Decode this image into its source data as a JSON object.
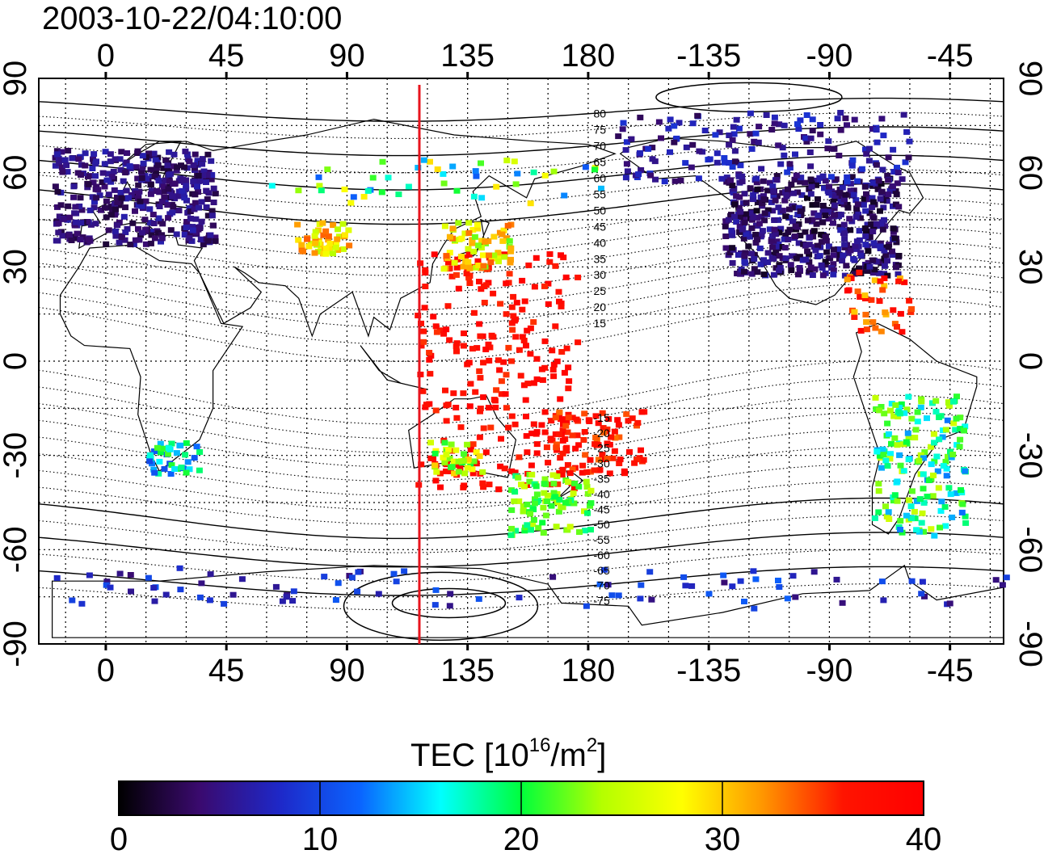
{
  "title": "2003-10-22/04:10:00",
  "map": {
    "lon_ticks": [
      "0",
      "45",
      "90",
      "135",
      "180",
      "-135",
      "-90",
      "-45"
    ],
    "lat_ticks": [
      "90",
      "60",
      "30",
      "0",
      "-30",
      "-60",
      "-90"
    ],
    "contour_labels": [
      "80",
      "75",
      "70",
      "65",
      "60",
      "55",
      "50",
      "45",
      "40",
      "35",
      "30",
      "25",
      "20",
      "15",
      "-15",
      "-20",
      "-25",
      "-30",
      "-35",
      "-40",
      "-45",
      "-50",
      "-55",
      "-60",
      "-65",
      "-70",
      "-75"
    ],
    "meridian_longitude": 117,
    "meridian_color": "#e8141e",
    "lon_range": [
      -25,
      335
    ],
    "lat_range": [
      -90,
      90
    ]
  },
  "colorbar": {
    "label_main": "TEC  [10",
    "label_sup": "16",
    "label_unit": "/m",
    "label_sup2": "2",
    "label_close": "]",
    "ticks": [
      "0",
      "10",
      "20",
      "30",
      "40"
    ],
    "min": 0,
    "max": 40,
    "colors": [
      "#000000",
      "#3a0a6e",
      "#1e28c8",
      "#0a64ff",
      "#00ffff",
      "#00ff3c",
      "#b4ff00",
      "#ffff00",
      "#ff9600",
      "#ff1400",
      "#ff0000"
    ]
  }
}
